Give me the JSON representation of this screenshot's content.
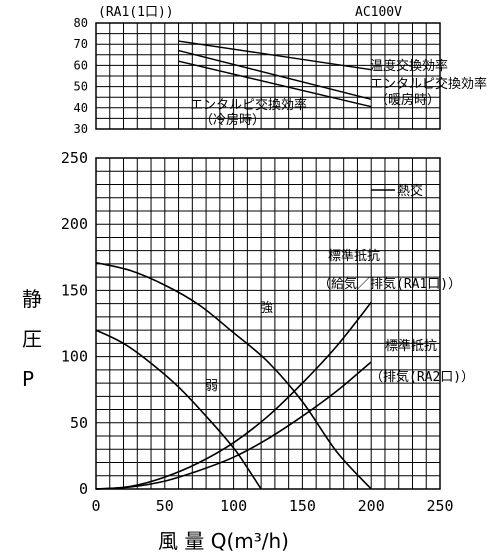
{
  "header": {
    "model": "(RA1(1口))",
    "voltage": "AC100V"
  },
  "axis_label": {
    "y_chars": [
      "静",
      "圧",
      "P"
    ],
    "x": "風 量 Q(m³/h)"
  },
  "chart_data": [
    {
      "type": "line",
      "ylim": [
        30,
        80
      ],
      "xlim": [
        0,
        250
      ],
      "grid": true,
      "y_ticks": [
        30,
        40,
        50,
        60,
        70,
        80
      ],
      "series": [
        {
          "name": "温度交換効率",
          "x": [
            60,
            200
          ],
          "y": [
            71.5,
            58
          ]
        },
        {
          "name": "エンタルピ交換効率（暖房時）",
          "x": [
            60,
            200
          ],
          "y": [
            67,
            44
          ]
        },
        {
          "name": "エンタルピ交換効率（冷房時）",
          "x": [
            60,
            200
          ],
          "y": [
            62,
            40.5
          ]
        }
      ],
      "annotations": [
        "温度交換効率",
        "エンタルピ交換効率",
        "（暖房時）",
        "エンタルピ交換効率",
        "（冷房時）"
      ]
    },
    {
      "type": "line",
      "xlim": [
        0,
        250
      ],
      "ylim": [
        0,
        250
      ],
      "grid": true,
      "x_ticks": [
        0,
        50,
        100,
        150,
        200,
        250
      ],
      "y_ticks": [
        0,
        50,
        100,
        150,
        200,
        250
      ],
      "series": [
        {
          "name": "強",
          "x": [
            0,
            25,
            50,
            75,
            100,
            125,
            150,
            175,
            200
          ],
          "y": [
            171,
            165,
            154,
            139,
            118,
            96,
            66,
            28,
            0
          ]
        },
        {
          "name": "弱",
          "x": [
            0,
            20,
            40,
            60,
            80,
            100,
            110,
            120
          ],
          "y": [
            120,
            110,
            95,
            77,
            55,
            31,
            16,
            0
          ]
        },
        {
          "name": "標準抵抗（給気／排気(RA1口)）",
          "x": [
            0,
            25,
            50,
            75,
            100,
            125,
            150,
            175,
            200
          ],
          "y": [
            0,
            2,
            9,
            20,
            35,
            55,
            80,
            108,
            141
          ]
        },
        {
          "name": "標準抵抗（排気(RA2口)）",
          "x": [
            0,
            25,
            50,
            75,
            100,
            125,
            150,
            175,
            200
          ],
          "y": [
            0,
            1.5,
            6,
            14,
            24,
            38,
            55,
            74,
            96
          ]
        }
      ],
      "legend": [
        "熱交"
      ],
      "annotations": [
        "強",
        "弱",
        "標準抵抗",
        "（給気／排気(RA1口)）",
        "標準抵抗",
        "（排気(RA2口)）"
      ]
    }
  ]
}
